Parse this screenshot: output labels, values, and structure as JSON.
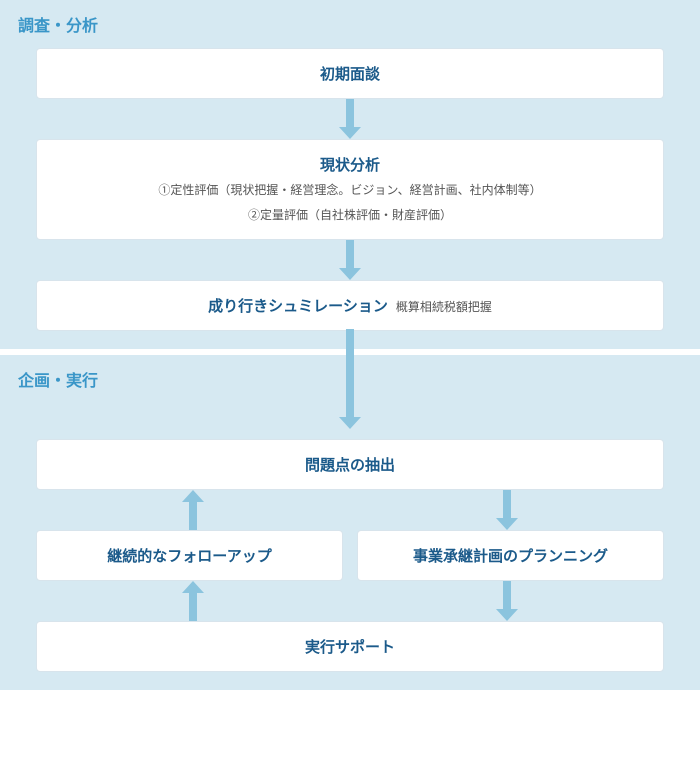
{
  "colors": {
    "section_bg": "#d6e9f2",
    "title_color": "#3a96c8",
    "box_bg": "#ffffff",
    "box_border": "#d8e4ec",
    "box_title_color": "#1b5a8a",
    "box_sub_color": "#555555",
    "arrow_color": "#8bc4de"
  },
  "sections": [
    {
      "title": "調査・分析",
      "boxes": [
        {
          "title": "初期面談"
        },
        {
          "title": "現状分析",
          "sub1": "①定性評価（現状把握・経営理念。ビジョン、経営計画、社内体制等）",
          "sub2": "②定量評価（自社株評価・財産評価）"
        },
        {
          "title": "成り行きシュミレーション",
          "inline_sub": "概算相続税額把握"
        }
      ]
    },
    {
      "title": "企画・実行",
      "boxes": [
        {
          "title": "問題点の抽出"
        },
        {
          "left_title": "継続的なフォローアップ",
          "right_title": "事業承継計画のプランニング"
        },
        {
          "title": "実行サポート"
        }
      ]
    }
  ],
  "flowchart": {
    "type": "flowchart",
    "nodes": [
      {
        "id": "n1",
        "label": "初期面談"
      },
      {
        "id": "n2",
        "label": "現状分析"
      },
      {
        "id": "n3",
        "label": "成り行きシュミレーション"
      },
      {
        "id": "n4",
        "label": "問題点の抽出"
      },
      {
        "id": "n5",
        "label": "継続的なフォローアップ"
      },
      {
        "id": "n6",
        "label": "事業承継計画のプランニング"
      },
      {
        "id": "n7",
        "label": "実行サポート"
      }
    ],
    "edges": [
      {
        "from": "n1",
        "to": "n2",
        "dir": "down"
      },
      {
        "from": "n2",
        "to": "n3",
        "dir": "down"
      },
      {
        "from": "n3",
        "to": "n4",
        "dir": "down"
      },
      {
        "from": "n4",
        "to": "n6",
        "dir": "down"
      },
      {
        "from": "n5",
        "to": "n4",
        "dir": "up"
      },
      {
        "from": "n6",
        "to": "n7",
        "dir": "down"
      },
      {
        "from": "n7",
        "to": "n5",
        "dir": "up"
      }
    ],
    "arrow_color": "#8bc4de",
    "arrow_stem_width": 8,
    "arrow_head_width": 22
  }
}
